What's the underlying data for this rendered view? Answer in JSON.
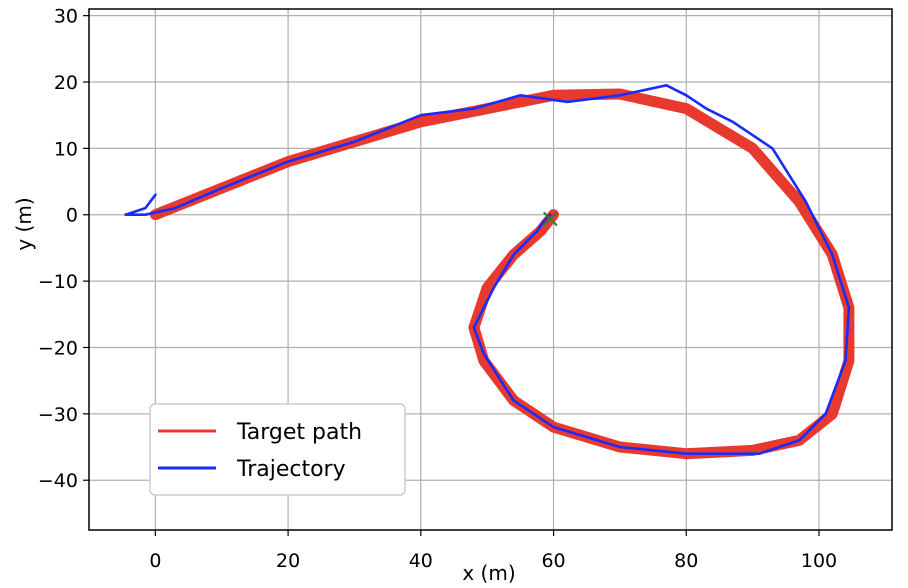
{
  "chart_data": {
    "type": "line",
    "title": "",
    "xlabel": "x (m)",
    "ylabel": "y (m)",
    "xlim": [
      -10,
      111
    ],
    "ylim": [
      -47.5,
      31
    ],
    "x_ticks": [
      0,
      20,
      40,
      60,
      80,
      100
    ],
    "y_ticks": [
      30,
      20,
      10,
      0,
      -10,
      -20,
      -30,
      -40
    ],
    "x_tick_labels": [
      "0",
      "20",
      "40",
      "60",
      "80",
      "100"
    ],
    "y_tick_labels": [
      "30",
      "20",
      "10",
      "0",
      "−10",
      "−20",
      "−30",
      "−40"
    ],
    "grid": true,
    "legend_position": "lower-left",
    "series": [
      {
        "name": "Target path",
        "color": "#e8392e",
        "x": [
          0,
          10,
          20,
          30,
          40,
          50,
          60,
          70,
          80,
          90,
          97,
          102,
          104.5,
          104.5,
          102,
          97,
          90,
          80,
          70,
          60,
          54,
          49.5,
          48,
          50,
          54,
          58,
          60
        ],
        "y": [
          0,
          4,
          8,
          11,
          14,
          16,
          18,
          18.2,
          16,
          10,
          2,
          -6,
          -14,
          -22,
          -30,
          -34,
          -35.5,
          -36,
          -35,
          -32,
          -28,
          -22,
          -17,
          -11,
          -6,
          -2.5,
          0
        ]
      },
      {
        "name": "Trajectory",
        "color": "#1a2bff",
        "x": [
          0,
          -1.5,
          -4.5,
          -1.5,
          3,
          10,
          20,
          30,
          40,
          48,
          55,
          62,
          70,
          77,
          80,
          83,
          87,
          93,
          98,
          102,
          104.5,
          104,
          101,
          97,
          91,
          86,
          80,
          70,
          60,
          54,
          49.5,
          48,
          51,
          54,
          57.5,
          58.5,
          59.5
        ],
        "y": [
          3,
          1,
          0,
          0,
          1,
          4,
          8,
          11,
          15,
          16,
          18,
          17,
          18,
          19.5,
          18,
          16,
          14,
          10,
          2,
          -6,
          -14,
          -22,
          -30,
          -34,
          -36,
          -36,
          -36,
          -35,
          -32,
          -28,
          -21,
          -17,
          -11,
          -6,
          -2.5,
          -1,
          0
        ]
      }
    ],
    "marker": {
      "symbol": "×",
      "color": "#2e7d32",
      "x": 59.5,
      "y": -0.5
    }
  }
}
